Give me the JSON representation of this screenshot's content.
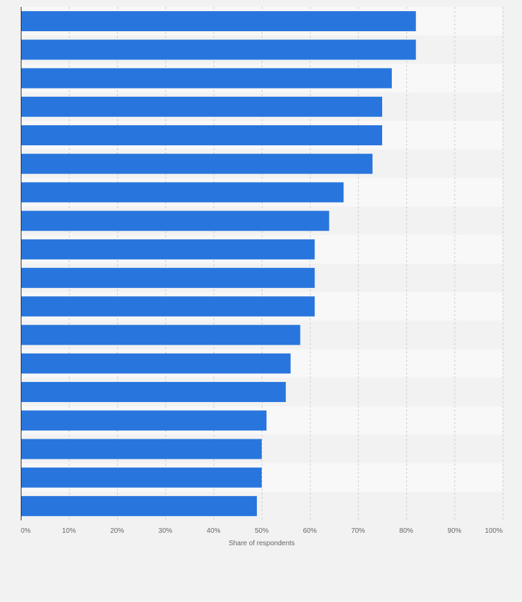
{
  "chart_data": {
    "type": "bar",
    "orientation": "horizontal",
    "categories": [
      "",
      "",
      "",
      "",
      "",
      "",
      "",
      "",
      "",
      "",
      "",
      "",
      "",
      "",
      "",
      "",
      "",
      ""
    ],
    "values": [
      82,
      82,
      77,
      75,
      75,
      73,
      67,
      64,
      61,
      61,
      61,
      58,
      56,
      55,
      51,
      50,
      50,
      49
    ],
    "xlabel": "Share of respondents",
    "ylabel": "",
    "xlim": [
      0,
      100
    ],
    "x_ticks": [
      0,
      10,
      20,
      30,
      40,
      50,
      60,
      70,
      80,
      90,
      100
    ],
    "x_tick_labels": [
      "0%",
      "10%",
      "20%",
      "30%",
      "40%",
      "50%",
      "60%",
      "70%",
      "80%",
      "90%",
      "100%"
    ],
    "grid": true,
    "bar_color": "#2876dd",
    "band_colors": [
      "#f8f8f8",
      "#f2f2f2"
    ],
    "gridline_color": "#cccccc",
    "text_color": "#666666"
  }
}
